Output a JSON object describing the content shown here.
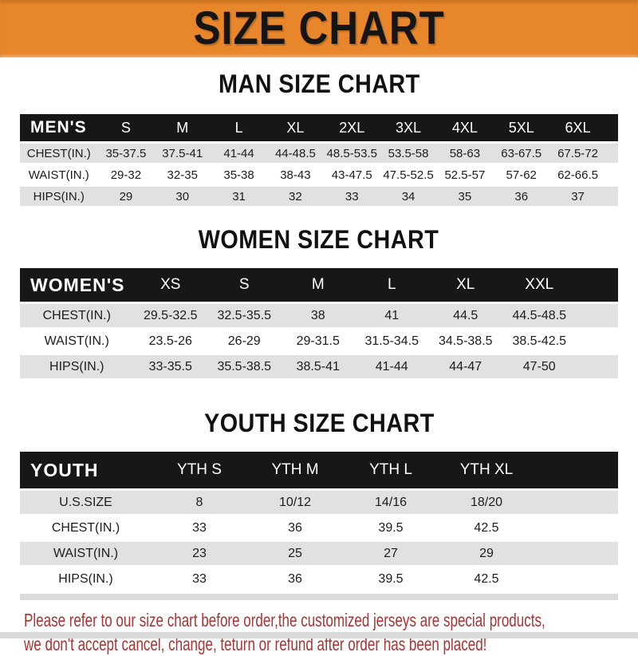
{
  "banner": {
    "title": "SIZE CHART"
  },
  "sections": [
    {
      "title": "MAN SIZE CHART",
      "header_label": "MEN'S",
      "columns": [
        "S",
        "M",
        "L",
        "XL",
        "2XL",
        "3XL",
        "4XL",
        "5XL",
        "6XL"
      ],
      "rows": [
        {
          "label": "CHEST(IN.)",
          "values": [
            "35-37.5",
            "37.5-41",
            "41-44",
            "44-48.5",
            "48.5-53.5",
            "53.5-58",
            "58-63",
            "63-67.5",
            "67.5-72"
          ]
        },
        {
          "label": "WAIST(IN.)",
          "values": [
            "29-32",
            "32-35",
            "35-38",
            "38-43",
            "43-47.5",
            "47.5-52.5",
            "52.5-57",
            "57-62",
            "62-66.5"
          ]
        },
        {
          "label": "HIPS(IN.)",
          "values": [
            "29",
            "30",
            "31",
            "32",
            "33",
            "34",
            "35",
            "36",
            "37"
          ]
        }
      ]
    },
    {
      "title": "WOMEN SIZE CHART",
      "header_label": "WOMEN'S",
      "columns": [
        "XS",
        "S",
        "M",
        "L",
        "XL",
        "XXL"
      ],
      "rows": [
        {
          "label": "CHEST(IN.)",
          "values": [
            "29.5-32.5",
            "32.5-35.5",
            "38",
            "41",
            "44.5",
            "44.5-48.5"
          ]
        },
        {
          "label": "WAIST(IN.)",
          "values": [
            "23.5-26",
            "26-29",
            "29-31.5",
            "31.5-34.5",
            "34.5-38.5",
            "38.5-42.5"
          ]
        },
        {
          "label": "HIPS(IN.)",
          "values": [
            "33-35.5",
            "35.5-38.5",
            "38.5-41",
            "41-44",
            "44-47",
            "47-50"
          ]
        }
      ]
    },
    {
      "title": "YOUTH SIZE CHART",
      "header_label": "YOUTH",
      "columns": [
        "YTH S",
        "YTH M",
        "YTH L",
        "YTH XL"
      ],
      "rows": [
        {
          "label": "U.S.SIZE",
          "values": [
            "8",
            "10/12",
            "14/16",
            "18/20"
          ]
        },
        {
          "label": "CHEST(IN.)",
          "values": [
            "33",
            "36",
            "39.5",
            "42.5"
          ]
        },
        {
          "label": "WAIST(IN.)",
          "values": [
            "23",
            "25",
            "27",
            "29"
          ]
        },
        {
          "label": "HIPS(IN.)",
          "values": [
            "33",
            "36",
            "39.5",
            "42.5"
          ]
        }
      ]
    }
  ],
  "footer": {
    "line1": "Please refer to our size chart before order,the customized jerseys are special products,",
    "line2": "we don't accept cancel, change, teturn or refund after order has been placed!"
  },
  "colors": {
    "banner_bg": "#e8862b",
    "table_header_bg": "#171717",
    "row_stripe": "#e1e1e1",
    "notice_text": "#a93434"
  }
}
